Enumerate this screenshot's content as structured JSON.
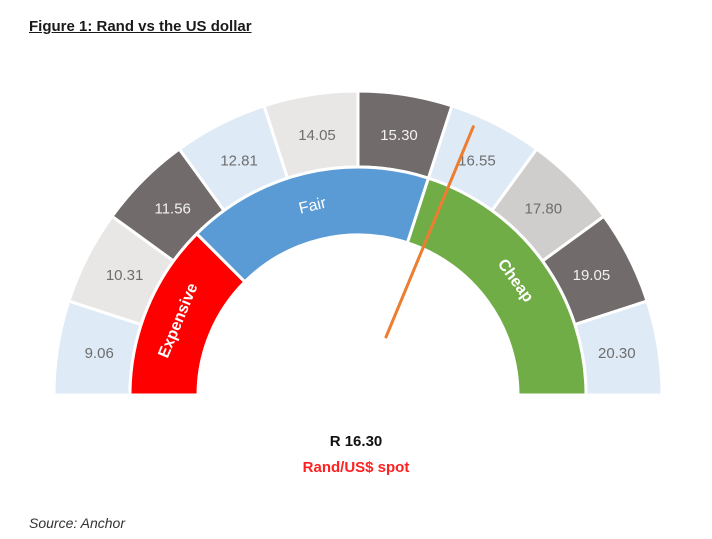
{
  "figure": {
    "title": "Figure 1: Rand vs the US dollar",
    "source": "Source: Anchor"
  },
  "readout": {
    "value": "R 16.30",
    "label": "Rand/US$ spot"
  },
  "chart_data": {
    "type": "gauge",
    "outer_ticks": [
      {
        "label": "9.06",
        "color": "#deeaf6"
      },
      {
        "label": "10.31",
        "color": "#e9e6e6"
      },
      {
        "label": "11.56",
        "color": "#716b6b"
      },
      {
        "label": "12.81",
        "color": "#deeaf6"
      },
      {
        "label": "14.05",
        "color": "#e9e6e6"
      },
      {
        "label": "15.30",
        "color": "#716b6b"
      },
      {
        "label": "16.55",
        "color": "#deeaf6"
      },
      {
        "label": "17.80",
        "color": "#d0cdcd"
      },
      {
        "label": "19.05",
        "color": "#716b6b"
      },
      {
        "label": "20.30",
        "color": "#deeaf6"
      }
    ],
    "bands": [
      {
        "label": "Expensive",
        "color": "#ff0000",
        "from": 0,
        "to": 0.25
      },
      {
        "label": "Fair",
        "color": "#5b9bd5",
        "from": 0.25,
        "to": 0.6
      },
      {
        "label": "Cheap",
        "color": "#70ad47",
        "from": 0.6,
        "to": 1
      }
    ],
    "spot": 16.3,
    "needle_color": "#ed7d31"
  }
}
